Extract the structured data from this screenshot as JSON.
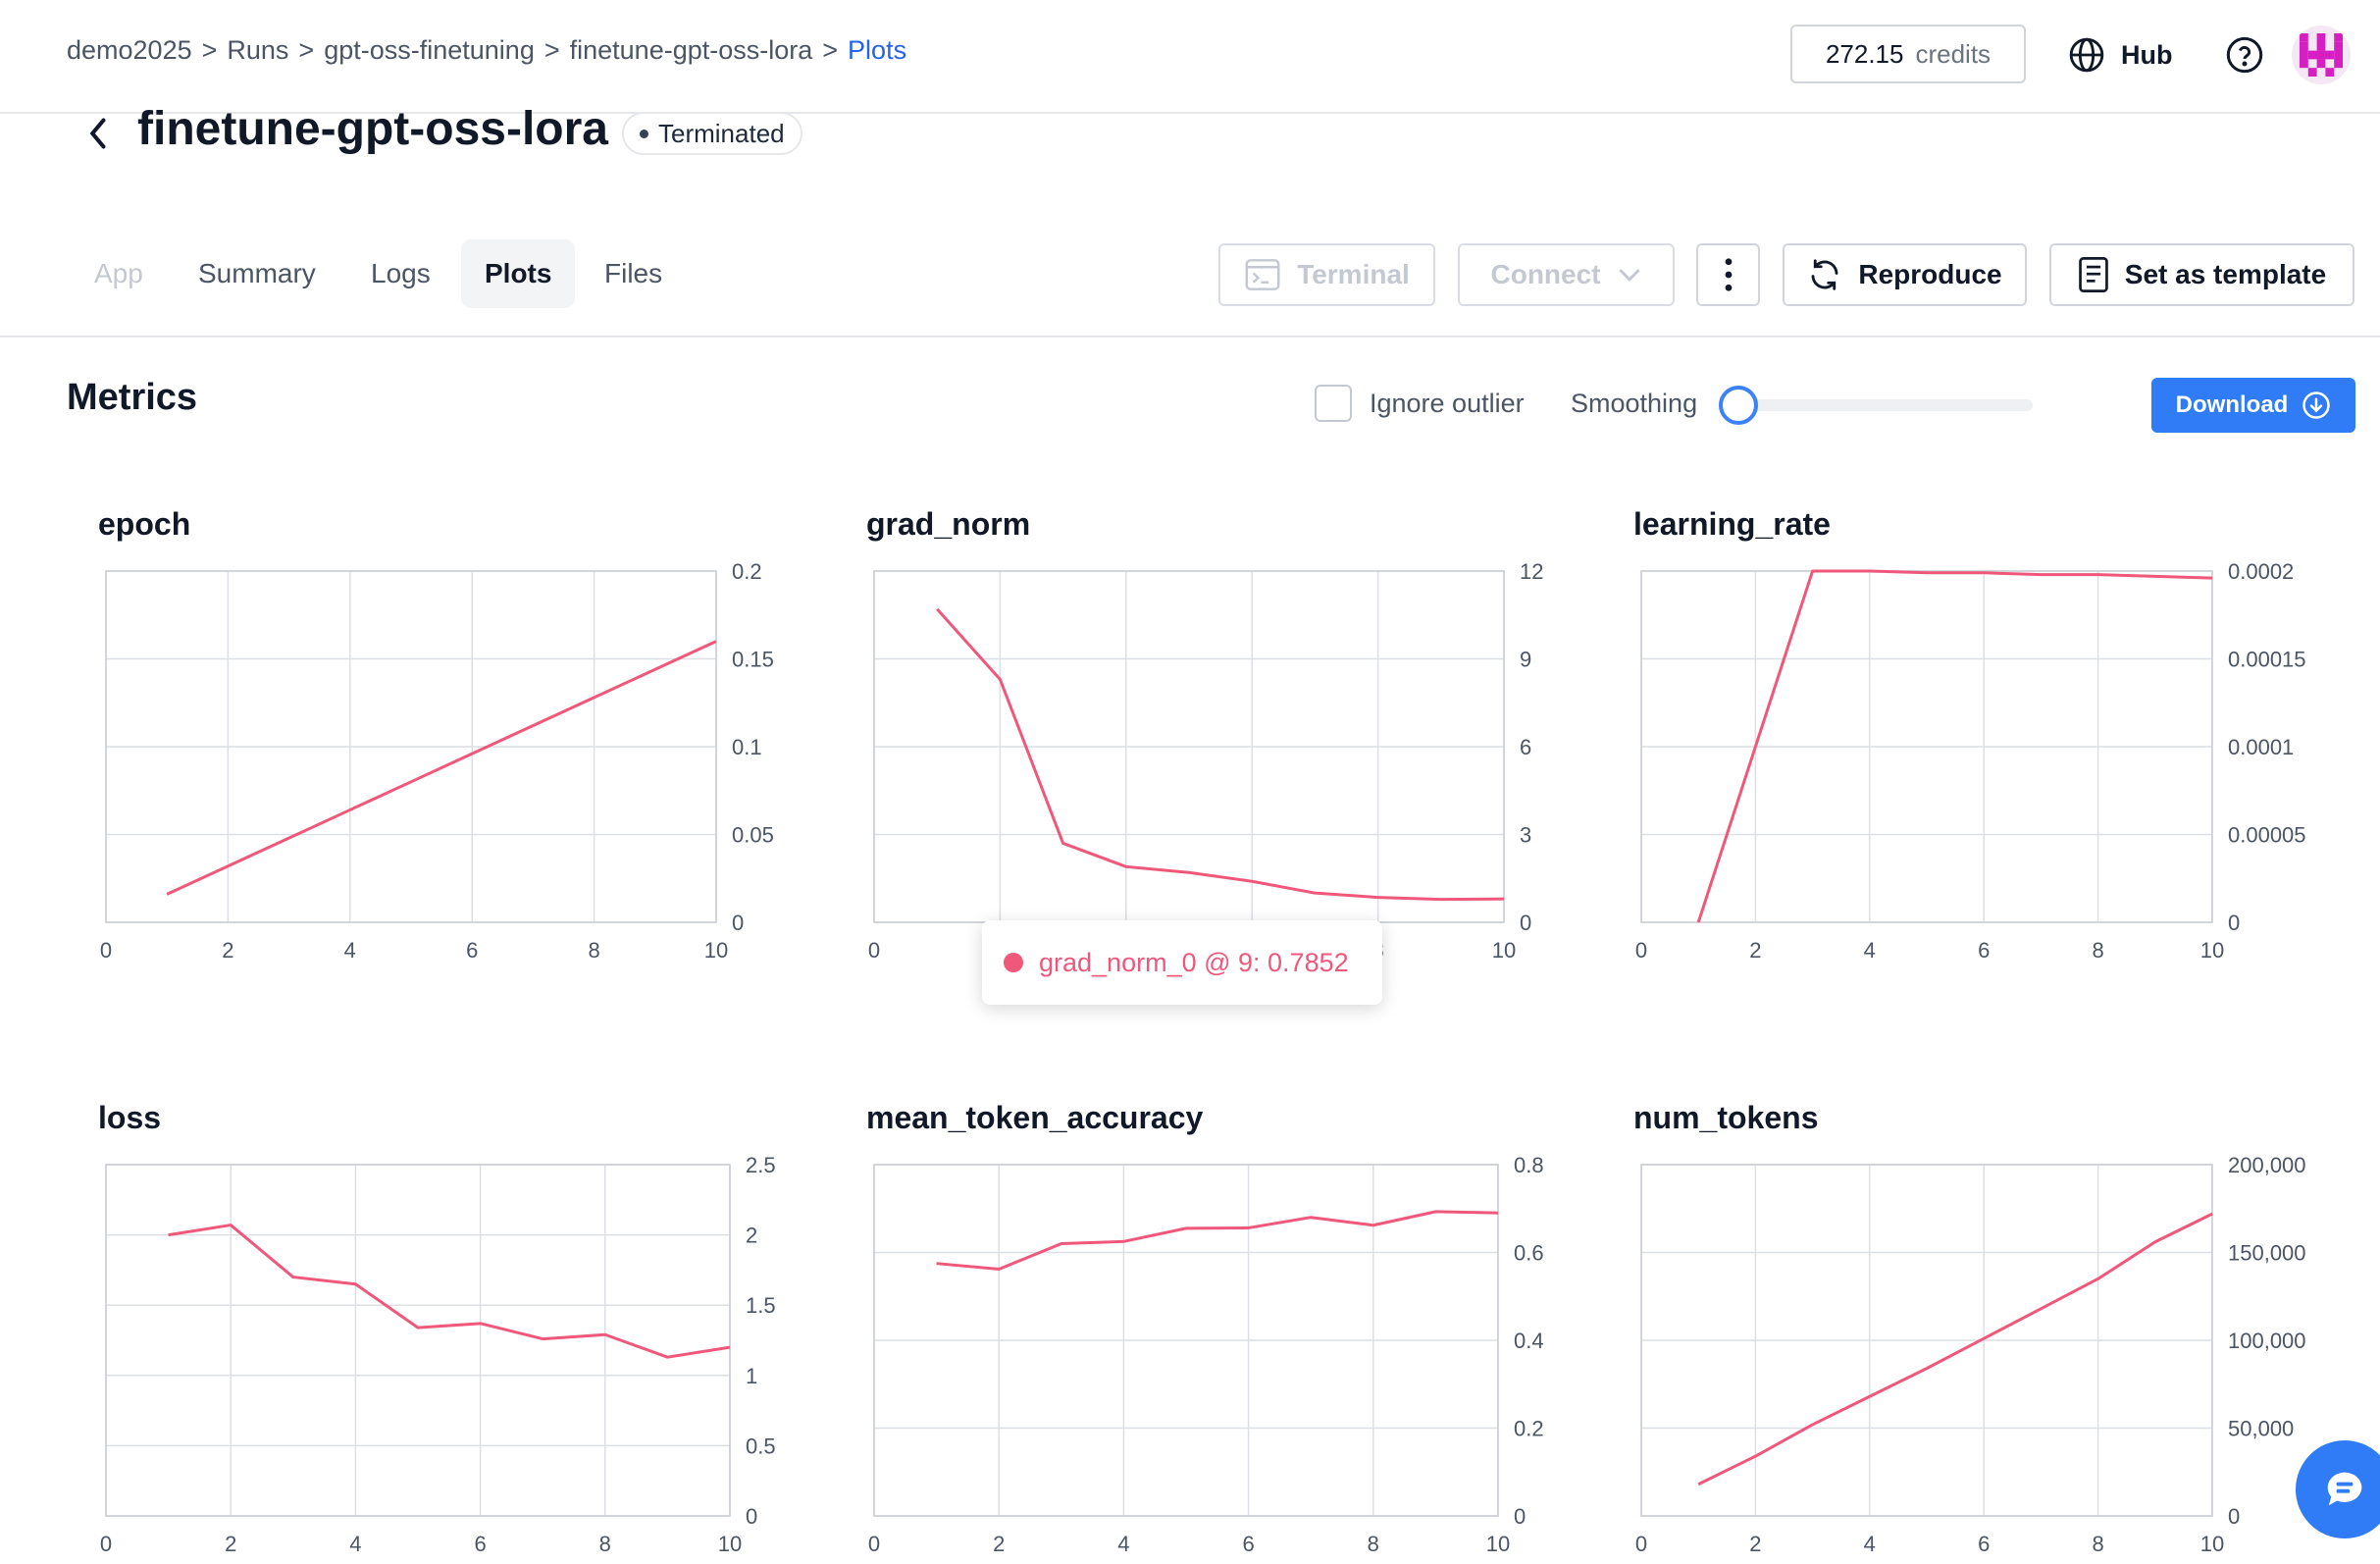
{
  "breadcrumb": {
    "items": [
      "demo2025",
      "Runs",
      "gpt-oss-finetuning",
      "finetune-gpt-oss-lora"
    ],
    "current": "Plots",
    "separator": ">"
  },
  "header": {
    "credits_value": "272.15",
    "credits_unit": "credits",
    "hub_label": "Hub"
  },
  "run": {
    "title": "finetune-gpt-oss-lora",
    "status": "Terminated"
  },
  "tabs": [
    {
      "label": "App",
      "state": "disabled"
    },
    {
      "label": "Summary",
      "state": "normal"
    },
    {
      "label": "Logs",
      "state": "normal"
    },
    {
      "label": "Plots",
      "state": "active"
    },
    {
      "label": "Files",
      "state": "normal"
    }
  ],
  "actions": {
    "terminal": "Terminal",
    "connect": "Connect",
    "reproduce": "Reproduce",
    "set_template": "Set as template"
  },
  "metrics": {
    "title": "Metrics",
    "ignore_outlier": "Ignore outlier",
    "ignore_outlier_checked": false,
    "smoothing_label": "Smoothing",
    "smoothing_value": 0,
    "download": "Download"
  },
  "tooltip": {
    "text": "grad_norm_0 @ 9: 0.7852"
  },
  "colors": {
    "series": "#f0587b",
    "accent": "#2f7cf6",
    "link": "#2563eb"
  },
  "chart_data": [
    {
      "type": "line",
      "title": "epoch",
      "xlim": [
        0,
        10
      ],
      "ylim": [
        0,
        0.2
      ],
      "xticks": [
        "0",
        "2",
        "4",
        "6",
        "8",
        "10"
      ],
      "yticks": [
        "0",
        "0.05",
        "0.1",
        "0.15",
        "0.2"
      ],
      "x": [
        1,
        2,
        3,
        4,
        5,
        6,
        7,
        8,
        9,
        10
      ],
      "values": [
        0.016,
        0.032,
        0.048,
        0.064,
        0.08,
        0.096,
        0.112,
        0.128,
        0.144,
        0.16
      ]
    },
    {
      "type": "line",
      "title": "grad_norm",
      "xlim": [
        0,
        10
      ],
      "ylim": [
        0,
        12
      ],
      "xticks": [
        "0",
        "2",
        "4",
        "6",
        "8",
        "10"
      ],
      "yticks": [
        "0",
        "3",
        "6",
        "9",
        "12"
      ],
      "x": [
        1,
        2,
        3,
        4,
        5,
        6,
        7,
        8,
        9,
        10
      ],
      "values": [
        10.7,
        8.3,
        2.7,
        1.9,
        1.7,
        1.4,
        1.0,
        0.85,
        0.7852,
        0.8
      ]
    },
    {
      "type": "line",
      "title": "learning_rate",
      "xlim": [
        0,
        10
      ],
      "ylim": [
        0,
        0.0002
      ],
      "xticks": [
        "0",
        "2",
        "4",
        "6",
        "8",
        "10"
      ],
      "yticks": [
        "0",
        "0.00005",
        "0.0001",
        "0.00015",
        "0.0002"
      ],
      "x": [
        1,
        2,
        3,
        4,
        5,
        6,
        7,
        8,
        9,
        10
      ],
      "values": [
        0.0,
        0.0001,
        0.0002,
        0.0002,
        0.000199,
        0.000199,
        0.000198,
        0.000198,
        0.000197,
        0.000196
      ]
    },
    {
      "type": "line",
      "title": "loss",
      "xlim": [
        0,
        10
      ],
      "ylim": [
        0,
        2.5
      ],
      "xticks": [
        "0",
        "2",
        "4",
        "6",
        "8",
        "10"
      ],
      "yticks": [
        "0",
        "0.5",
        "1",
        "1.5",
        "2",
        "2.5"
      ],
      "x": [
        1,
        2,
        3,
        4,
        5,
        6,
        7,
        8,
        9,
        10
      ],
      "values": [
        2.0,
        2.07,
        1.7,
        1.65,
        1.34,
        1.37,
        1.26,
        1.29,
        1.13,
        1.2
      ]
    },
    {
      "type": "line",
      "title": "mean_token_accuracy",
      "xlim": [
        0,
        10
      ],
      "ylim": [
        0,
        0.8
      ],
      "xticks": [
        "0",
        "2",
        "4",
        "6",
        "8",
        "10"
      ],
      "yticks": [
        "0",
        "0.2",
        "0.4",
        "0.6",
        "0.8"
      ],
      "x": [
        1,
        2,
        3,
        4,
        5,
        6,
        7,
        8,
        9,
        10
      ],
      "values": [
        0.575,
        0.562,
        0.62,
        0.625,
        0.655,
        0.656,
        0.68,
        0.662,
        0.693,
        0.69
      ]
    },
    {
      "type": "line",
      "title": "num_tokens",
      "xlim": [
        0,
        10
      ],
      "ylim": [
        0,
        200000
      ],
      "xticks": [
        "0",
        "2",
        "4",
        "6",
        "8",
        "10"
      ],
      "yticks": [
        "0",
        "50,000",
        "100,000",
        "150,000",
        "200,000"
      ],
      "x": [
        1,
        2,
        3,
        4,
        5,
        6,
        7,
        8,
        9,
        10
      ],
      "values": [
        18000,
        34000,
        52000,
        68000,
        84000,
        101000,
        118000,
        135000,
        156000,
        172000
      ]
    }
  ]
}
